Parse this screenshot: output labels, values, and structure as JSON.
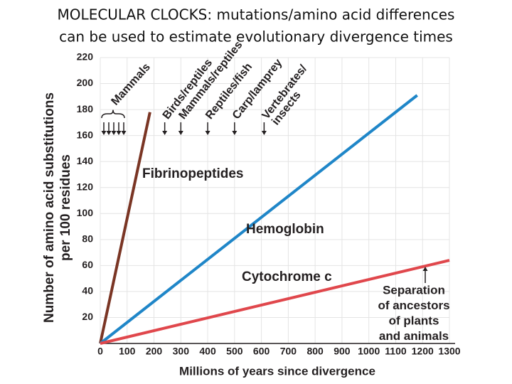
{
  "chart_data": {
    "type": "line",
    "title": [
      "MOLECULAR CLOCKS: mutations/amino acid differences",
      "can be used to estimate evolutionary divergence times"
    ],
    "x_label": "Millions of years since divergence",
    "y_label": [
      "Number of amino acid substitutions",
      "per 100 residues"
    ],
    "xlim": [
      0,
      1300
    ],
    "xticks": [
      0,
      100,
      200,
      300,
      400,
      500,
      600,
      700,
      800,
      900,
      1000,
      1100,
      1200,
      1300
    ],
    "ylim": [
      0,
      220
    ],
    "yticks": [
      20,
      40,
      60,
      80,
      100,
      120,
      140,
      160,
      180,
      200,
      220
    ],
    "grid": true,
    "series": [
      {
        "name": "Fibrinopeptides",
        "color": "#7a3524",
        "x": [
          0,
          185
        ],
        "values": [
          0,
          178
        ]
      },
      {
        "name": "Hemoglobin",
        "color": "#1f86c8",
        "x": [
          0,
          1180
        ],
        "values": [
          0,
          191
        ]
      },
      {
        "name": "Cytochrome c",
        "color": "#e0474c",
        "x": [
          0,
          1300
        ],
        "values": [
          0,
          64
        ]
      }
    ],
    "annotations": [
      {
        "lines": [
          "Mammals"
        ],
        "x": 50
      },
      {
        "lines": [
          "Birds/reptiles"
        ],
        "x": 240
      },
      {
        "lines": [
          "Mammals/reptiles"
        ],
        "x": 300
      },
      {
        "lines": [
          "Reptiles/fish"
        ],
        "x": 400
      },
      {
        "lines": [
          "Carp/lamprey"
        ],
        "x": 500
      },
      {
        "lines": [
          "Vertebrates/",
          "insects"
        ],
        "x": 610
      },
      {
        "lines": [
          "Separation",
          "of ancestors",
          "of plants",
          "and animals"
        ],
        "x": 1210
      }
    ]
  }
}
